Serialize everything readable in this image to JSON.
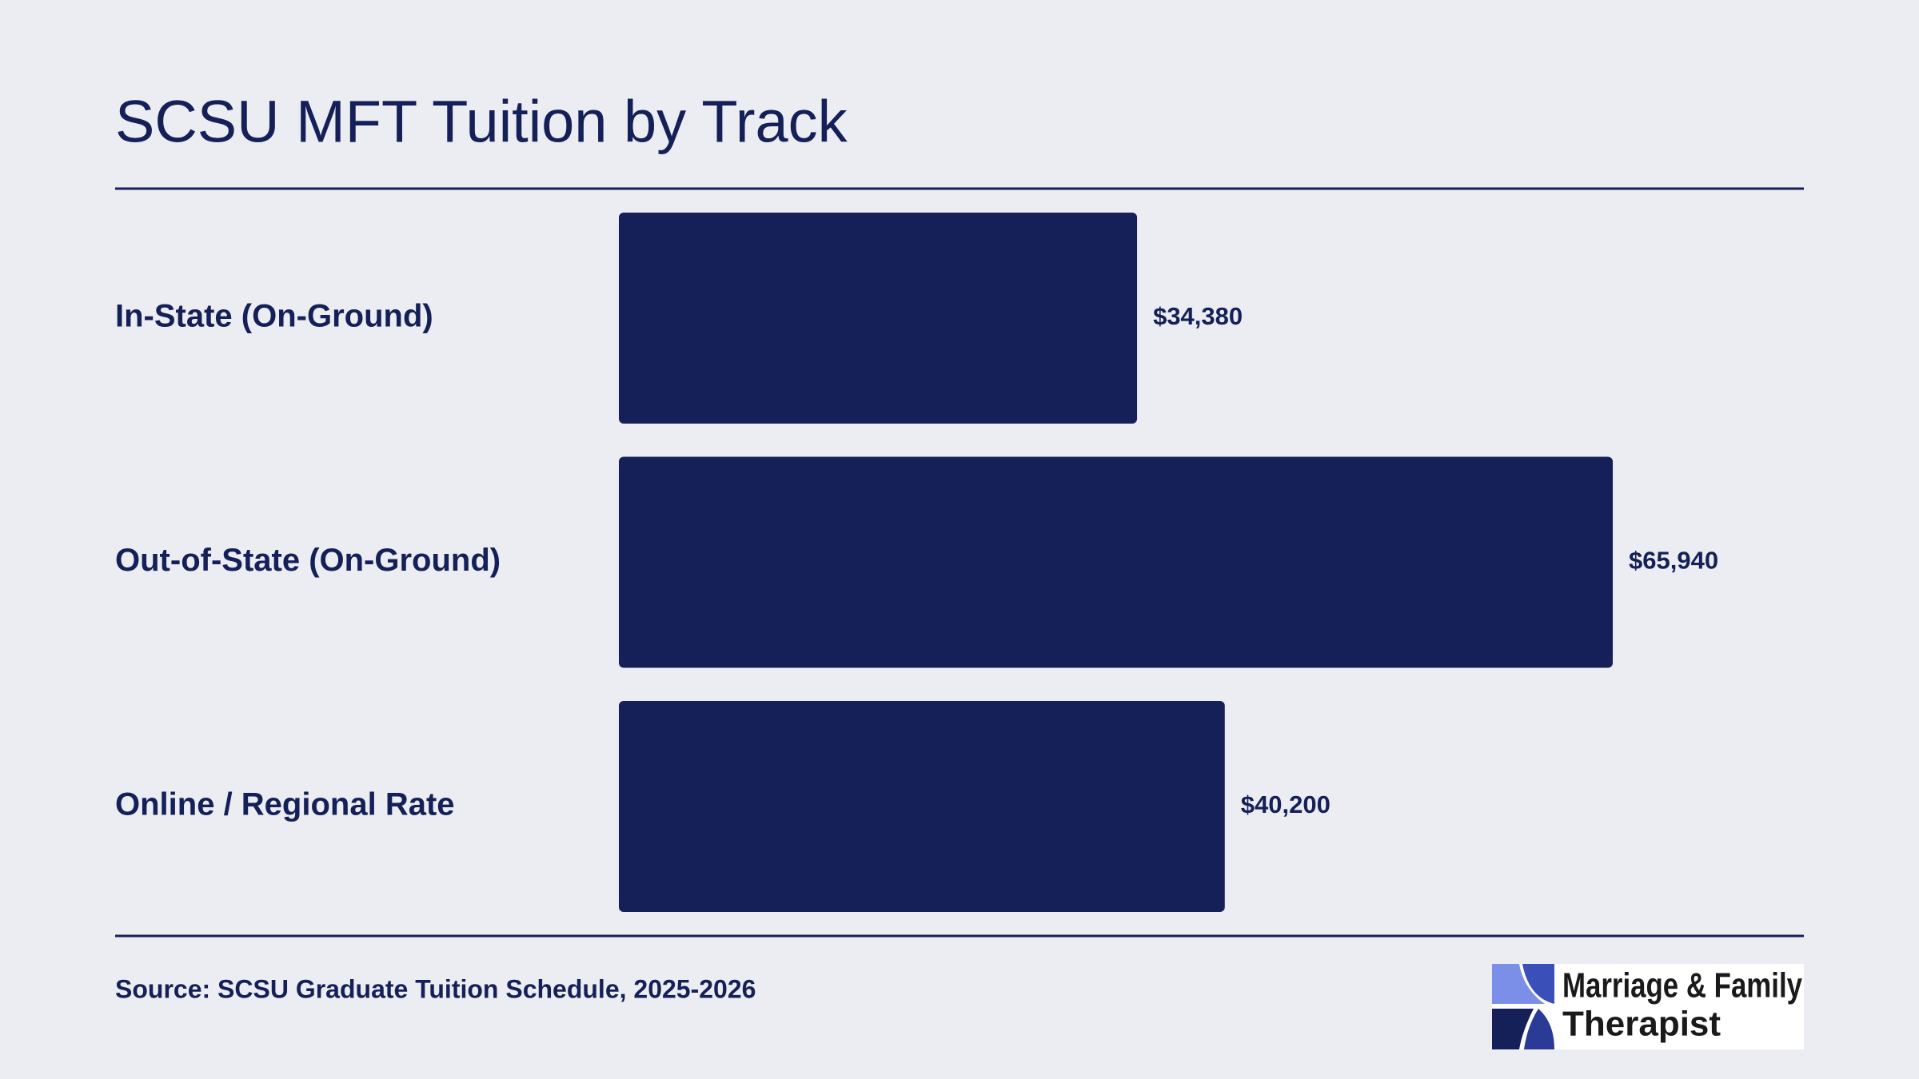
{
  "chart_data": {
    "type": "bar",
    "orientation": "horizontal",
    "title": "SCSU MFT Tuition by Track",
    "categories": [
      "In-State (On-Ground)",
      "Out-of-State (On-Ground)",
      "Online / Regional Rate"
    ],
    "values": [
      34380,
      65940,
      40200
    ],
    "value_labels": [
      "$34,380",
      "$65,940",
      "$40,200"
    ],
    "color": "#142057",
    "source": "Source: SCSU Graduate Tuition Schedule, 2025-2026"
  },
  "logo": {
    "lines": [
      "Marriage & Family",
      "Therapist"
    ]
  }
}
